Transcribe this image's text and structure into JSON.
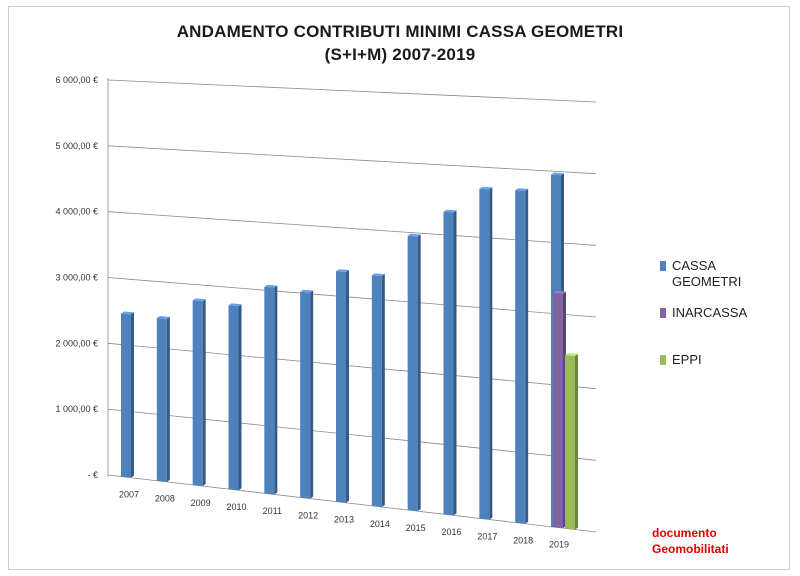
{
  "chart_data": {
    "type": "bar",
    "title": "ANDAMENTO CONTRIBUTI MINIMI CASSA GEOMETRI",
    "subtitle": "(S+I+M) 2007-2019",
    "categories": [
      "2007",
      "2008",
      "2009",
      "2010",
      "2011",
      "2012",
      "2013",
      "2014",
      "2015",
      "2016",
      "2017",
      "2018",
      "2019"
    ],
    "series": [
      {
        "name": "CASSA GEOMETRI",
        "color": "#4f81bd",
        "values": [
          2470,
          2450,
          2760,
          2730,
          3050,
          3020,
          3360,
          3340,
          3950,
          4330,
          4690,
          4700,
          4950
        ]
      },
      {
        "name": "INARCASSA",
        "color": "#8064a2",
        "values": [
          null,
          null,
          null,
          null,
          null,
          null,
          null,
          null,
          null,
          null,
          null,
          null,
          3290
        ]
      },
      {
        "name": "EPPI",
        "color": "#9bbb59",
        "values": [
          null,
          null,
          null,
          null,
          null,
          null,
          null,
          null,
          null,
          null,
          null,
          null,
          2430
        ]
      }
    ],
    "legend_lines": [
      [
        "CASSA",
        "GEOMETRI"
      ],
      [
        "INARCASSA"
      ],
      [
        "EPPI"
      ]
    ],
    "ylim": [
      0,
      6000
    ],
    "yticks": [
      0,
      1000,
      2000,
      3000,
      4000,
      5000,
      6000
    ],
    "ytick_labels": [
      "-  €",
      "1 000,00 €",
      "2 000,00 €",
      "3 000,00 €",
      "4 000,00 €",
      "5 000,00 €",
      "6 000,00 €"
    ],
    "grid": true,
    "legend_position": "right",
    "xlabel": "",
    "ylabel": ""
  },
  "credit": {
    "line1": "documento",
    "line2": "Geomobilitati"
  }
}
